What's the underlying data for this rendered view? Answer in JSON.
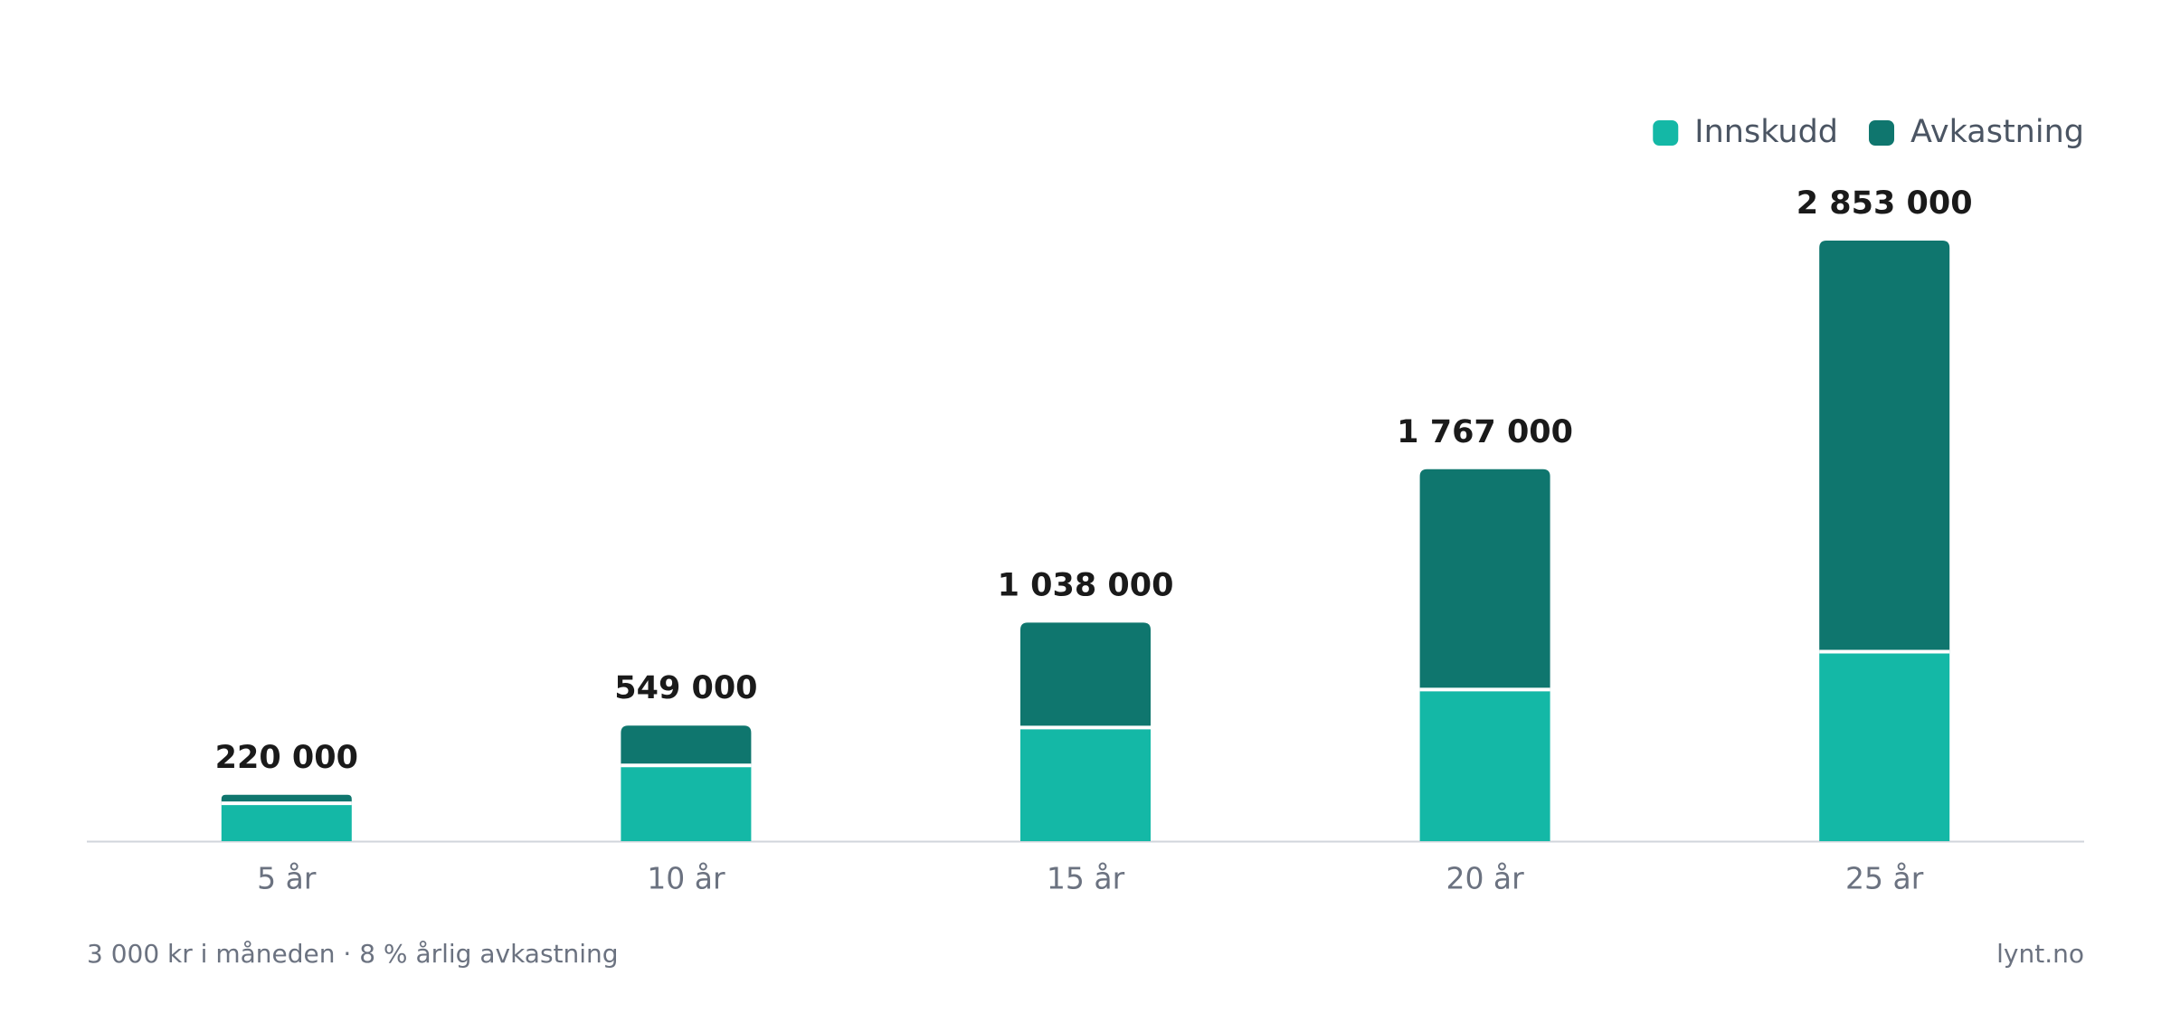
{
  "chart_data": {
    "type": "stacked-bar",
    "categories": [
      "5 år",
      "10 år",
      "15 år",
      "20 år",
      "25 år"
    ],
    "series": [
      {
        "name": "Innskudd",
        "color": "#14b8a6",
        "values": [
          180000,
          360000,
          540000,
          720000,
          900000
        ]
      },
      {
        "name": "Avkastning",
        "color": "#0f766e",
        "values": [
          40000,
          189000,
          498000,
          1047000,
          1953000
        ]
      }
    ],
    "totals": [
      220000,
      549000,
      1038000,
      1767000,
      2853000
    ],
    "total_labels": [
      "220 000",
      "549 000",
      "1 038 000",
      "1 767 000",
      "2 853 000"
    ],
    "ylim": [
      0,
      2853000
    ],
    "legend": "top-right",
    "footer": {
      "note": "3 000 kr i måneden · 8 % årlig avkastning",
      "source": "lynt.no"
    }
  }
}
